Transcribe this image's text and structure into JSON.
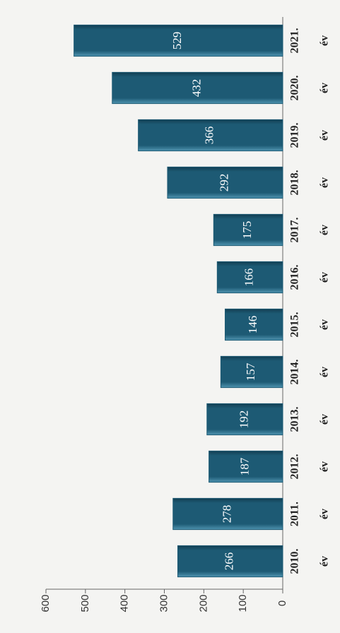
{
  "chart_data": {
    "type": "bar",
    "categories": [
      [
        "2010.",
        "év"
      ],
      [
        "2011.",
        "év"
      ],
      [
        "2012.",
        "év"
      ],
      [
        "2013.",
        "év"
      ],
      [
        "2014.",
        "év"
      ],
      [
        "2015.",
        "év"
      ],
      [
        "2016.",
        "év"
      ],
      [
        "2017.",
        "év"
      ],
      [
        "2018.",
        "év"
      ],
      [
        "2019.",
        "év"
      ],
      [
        "2020.",
        "év"
      ],
      [
        "2021.",
        "év"
      ]
    ],
    "values": [
      266,
      278,
      187,
      192,
      157,
      146,
      166,
      175,
      292,
      366,
      432,
      529
    ],
    "color": "#1d5a74",
    "ylim": [
      0,
      600
    ],
    "yticks": [
      0,
      100,
      200,
      300,
      400,
      500,
      600
    ],
    "grid": false
  }
}
